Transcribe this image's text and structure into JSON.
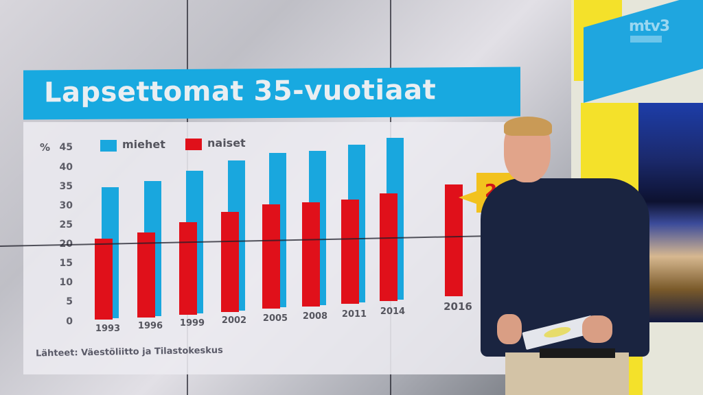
{
  "title": "Lapsettomat 35-vuotiaat",
  "y_axis": {
    "unit": "%",
    "ticks": [
      "45",
      "40",
      "35",
      "30",
      "25",
      "20",
      "15",
      "10",
      "5",
      "0"
    ]
  },
  "legend": [
    {
      "label": "miehet",
      "color": "#19a7de"
    },
    {
      "label": "naiset",
      "color": "#e0101a"
    }
  ],
  "x_labels": [
    "1993",
    "1996",
    "1999",
    "2002",
    "2005",
    "2008",
    "2011",
    "2014",
    "2016"
  ],
  "callout": {
    "text": "29%",
    "color": "#f2c21e"
  },
  "source": "Lähteet: Väestöliitto ja Tilastokeskus",
  "logo": "mtv3",
  "chart_data": {
    "type": "bar",
    "title": "Lapsettomat 35-vuotiaat",
    "xlabel": "",
    "ylabel": "%",
    "ylim": [
      0,
      45
    ],
    "categories": [
      "1993",
      "1996",
      "1999",
      "2002",
      "2005",
      "2008",
      "2011",
      "2014",
      "2016"
    ],
    "series": [
      {
        "name": "miehet",
        "color": "#19a7de",
        "values": [
          34,
          35,
          37,
          39,
          40,
          40,
          41,
          42,
          null
        ]
      },
      {
        "name": "naiset",
        "color": "#e0101a",
        "values": [
          21,
          22,
          24,
          26,
          27,
          27,
          27,
          28,
          29
        ]
      }
    ],
    "annotations": [
      {
        "category": "2016",
        "series": "naiset",
        "text": "29%"
      }
    ],
    "legend_position": "top-left",
    "grid": false,
    "source": "Lähteet: Väestöliitto ja Tilastokeskus"
  }
}
